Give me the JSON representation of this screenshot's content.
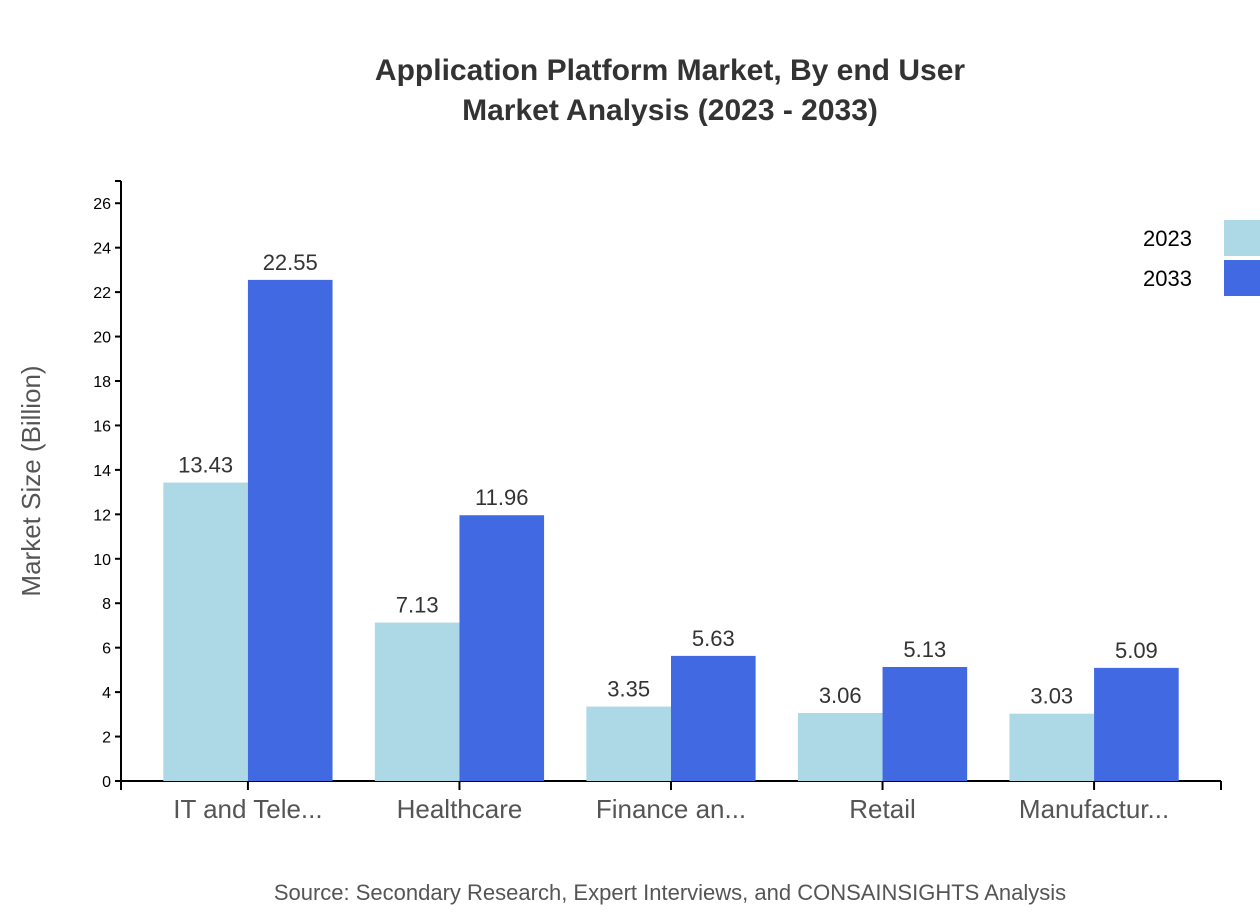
{
  "chart_data": {
    "type": "bar",
    "title": "Application Platform Market, By end User",
    "subtitle": "Market Analysis (2023 - 2033)",
    "xlabel": "",
    "ylabel": "Market Size (Billion)",
    "ylim": [
      0,
      27
    ],
    "yticks": [
      0,
      2,
      4,
      6,
      8,
      10,
      12,
      14,
      16,
      18,
      20,
      22,
      24,
      26
    ],
    "categories": [
      "IT and Tele...",
      "Healthcare",
      "Finance an...",
      "Retail",
      "Manufactur..."
    ],
    "series": [
      {
        "name": "2023",
        "color": "#ADD8E6",
        "values": [
          13.43,
          7.13,
          3.35,
          3.06,
          3.03
        ]
      },
      {
        "name": "2033",
        "color": "#4169E1",
        "values": [
          22.55,
          11.96,
          5.63,
          5.13,
          5.09
        ]
      }
    ],
    "legend_position": "top-right",
    "grid": false,
    "source": "Source: Secondary Research, Expert Interviews, and CONSAINSIGHTS Analysis"
  }
}
